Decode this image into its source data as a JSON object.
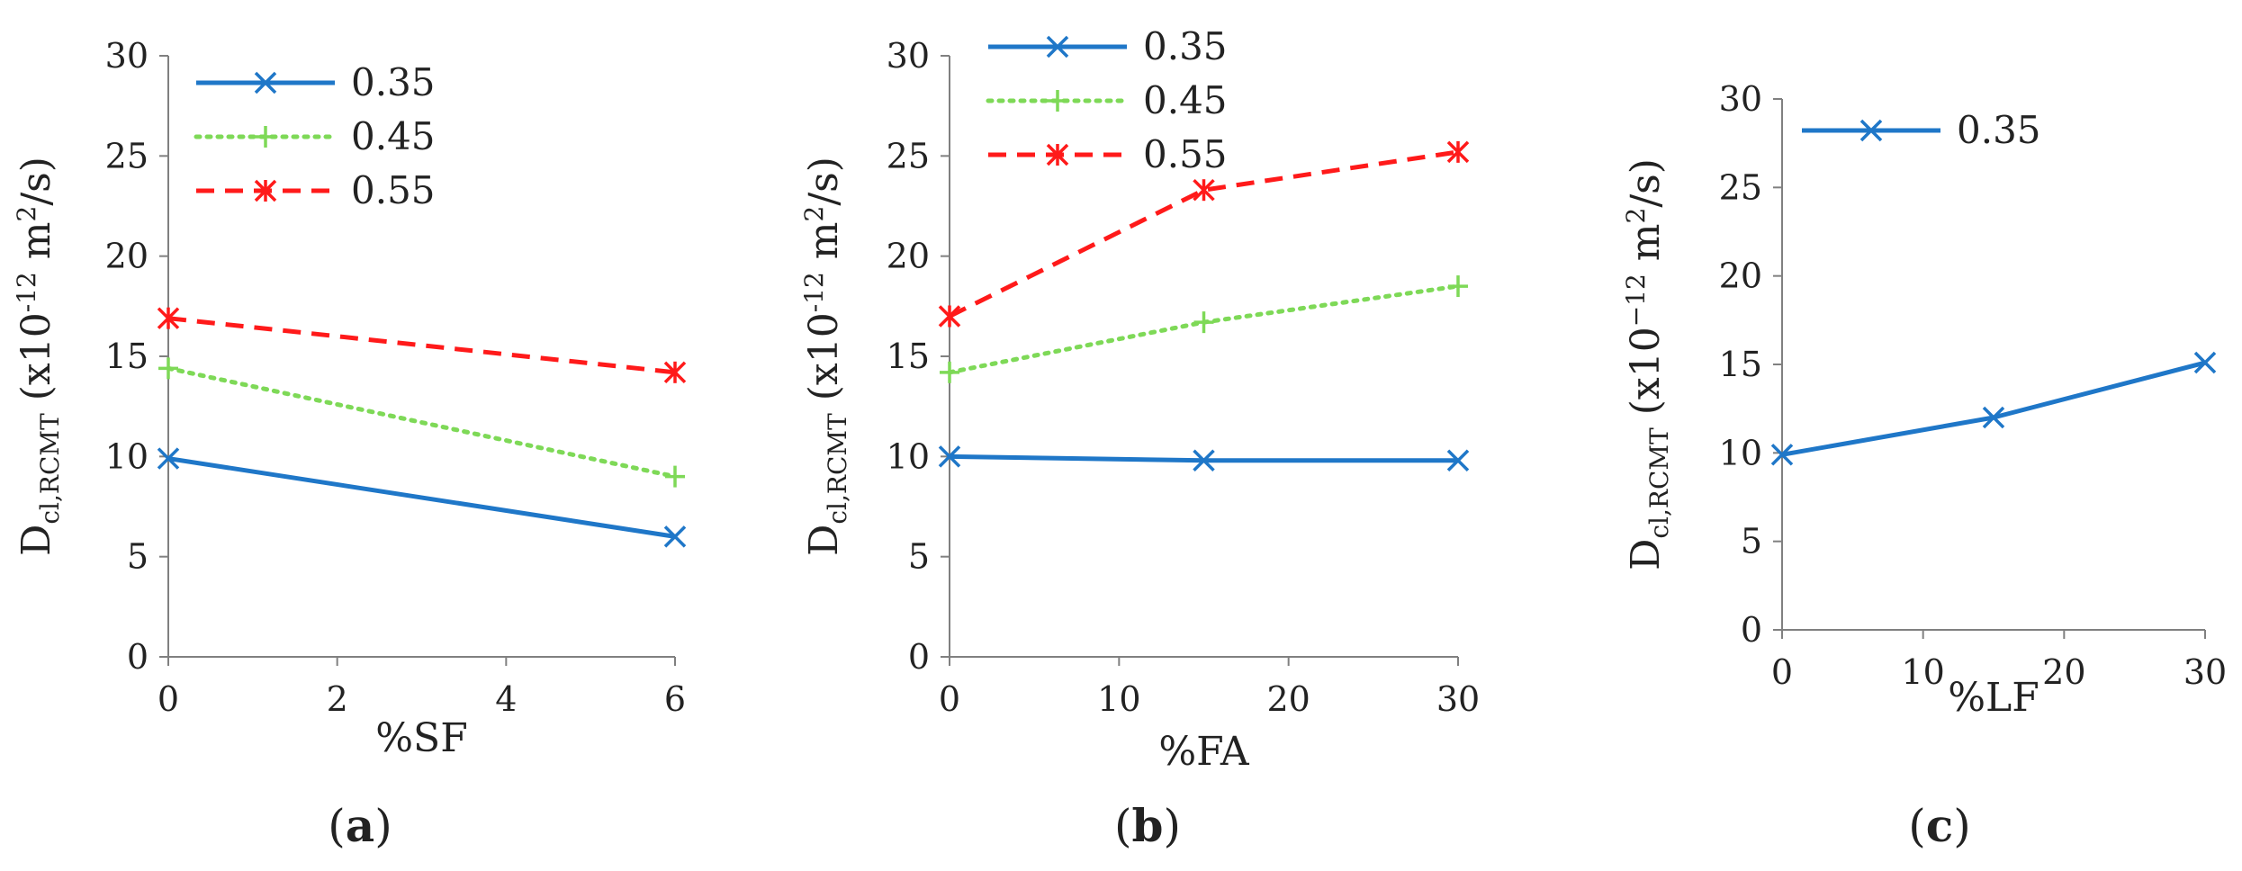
{
  "chart_data": [
    {
      "panel": "a",
      "type": "line",
      "panel_label": "a",
      "xlabel": "%SF",
      "ylabel": {
        "main": "D",
        "sub": "cl,RCMT",
        "unit_pre": "(x10",
        "unit_exp": "-12",
        "unit_mid": " m",
        "unit_sq": "2",
        "unit_post": "/s)"
      },
      "xlim": [
        0,
        6
      ],
      "ylim": [
        0,
        30
      ],
      "xticks": [
        0,
        2,
        4,
        6
      ],
      "yticks": [
        0,
        5,
        10,
        15,
        20,
        25,
        30
      ],
      "legend_position": "top-left",
      "series": [
        {
          "name": "0.35",
          "color": "#1f77c8",
          "dash": "solid",
          "marker": "x",
          "x": [
            0,
            6
          ],
          "y": [
            9.9,
            6.0
          ]
        },
        {
          "name": "0.45",
          "color": "#7ed957",
          "dash": "dotted",
          "marker": "+",
          "x": [
            0,
            6
          ],
          "y": [
            14.4,
            9.0
          ]
        },
        {
          "name": "0.55",
          "color": "#ff1a1a",
          "dash": "dashed",
          "marker": "*",
          "x": [
            0,
            6
          ],
          "y": [
            16.9,
            14.2
          ]
        }
      ]
    },
    {
      "panel": "b",
      "type": "line",
      "panel_label": "b",
      "xlabel": "%FA",
      "ylabel": {
        "main": "D",
        "sub": "cl,RCMT",
        "unit_pre": "(x10",
        "unit_exp": "-12",
        "unit_mid": " m",
        "unit_sq": "2",
        "unit_post": "/s)"
      },
      "xlim": [
        0,
        30
      ],
      "ylim": [
        0,
        30
      ],
      "xticks": [
        0,
        10,
        20,
        30
      ],
      "yticks": [
        0,
        5,
        10,
        15,
        20,
        25,
        30
      ],
      "legend_position": "top-left",
      "series": [
        {
          "name": "0.35",
          "color": "#1f77c8",
          "dash": "solid",
          "marker": "x",
          "x": [
            0,
            15,
            30
          ],
          "y": [
            10.0,
            9.8,
            9.8
          ]
        },
        {
          "name": "0.45",
          "color": "#7ed957",
          "dash": "dotted",
          "marker": "+",
          "x": [
            0,
            15,
            30
          ],
          "y": [
            14.2,
            16.7,
            18.5
          ]
        },
        {
          "name": "0.55",
          "color": "#ff1a1a",
          "dash": "dashed",
          "marker": "*",
          "x": [
            0,
            15,
            30
          ],
          "y": [
            17.0,
            23.3,
            25.2
          ]
        }
      ]
    },
    {
      "panel": "c",
      "type": "line",
      "panel_label": "c",
      "xlabel": "%LF",
      "ylabel": {
        "main": "D",
        "sub": "cl,RCMT",
        "unit_pre": "(x10",
        "unit_exp": "−12",
        "unit_mid": " m",
        "unit_sq": "2",
        "unit_post": "/s)"
      },
      "xlim": [
        0,
        30
      ],
      "ylim": [
        0,
        30
      ],
      "xticks": [
        0,
        10,
        20,
        30
      ],
      "yticks": [
        0,
        5,
        10,
        15,
        20,
        25,
        30
      ],
      "legend_position": "top-left",
      "series": [
        {
          "name": "0.35",
          "color": "#1f77c8",
          "dash": "solid",
          "marker": "x",
          "x": [
            0,
            15,
            30
          ],
          "y": [
            9.9,
            12.0,
            15.1
          ]
        }
      ]
    }
  ]
}
